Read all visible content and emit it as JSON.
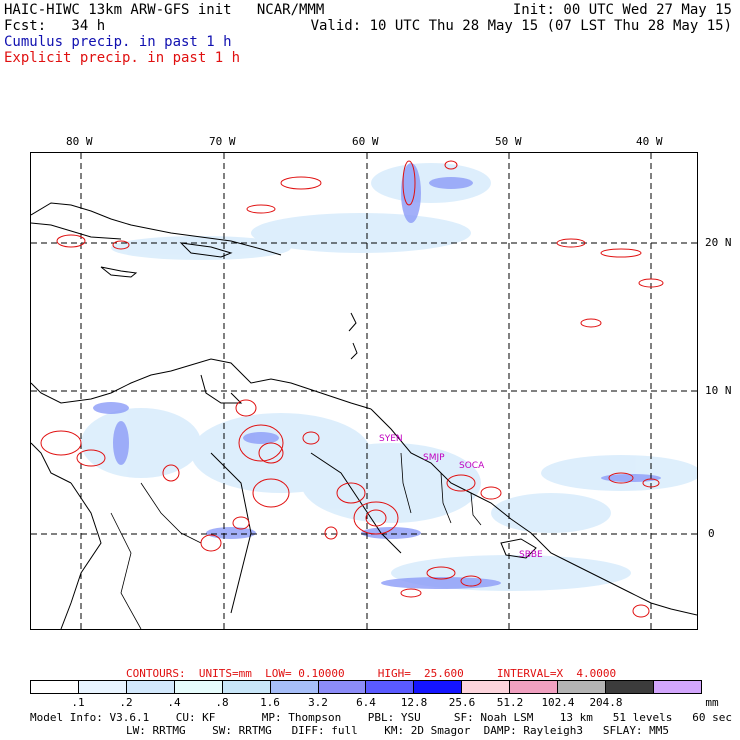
{
  "header": {
    "title": "HAIC-HIWC 13km ARW-GFS init   NCAR/MMM",
    "init": "Init: 00 UTC Wed 27 May 15",
    "fcst": "Fcst:   34 h",
    "valid": "Valid: 10 UTC Thu 28 May 15 (07 LST Thu 28 May 15)",
    "legend_cumulus": "Cumulus precip. in past 1 h",
    "legend_explicit": "Explicit precip. in past 1 h"
  },
  "map": {
    "lon_labels": [
      "80 W",
      "70 W",
      "60 W",
      "50 W",
      "40 W"
    ],
    "lat_labels": [
      "20 N",
      "10 N",
      "0"
    ],
    "station_labels": [
      "SYEN",
      "SMJP",
      "SOCA",
      "SBBE"
    ]
  },
  "contours": {
    "prefix": "CONTOURS:",
    "units": "UNITS=mm",
    "low": "LOW= 0.10000",
    "high": "HIGH=  25.600",
    "interval": "INTERVAL=X  4.0000"
  },
  "colorbar": {
    "colors": [
      "#ffffff",
      "#e8f4ff",
      "#d2e8fc",
      "#e6fcfc",
      "#c8e6f8",
      "#a6bef8",
      "#8c8cf8",
      "#5a5aff",
      "#1414ff",
      "#fcd4dc",
      "#f0a0c0",
      "#b4b4b4",
      "#3c3c3c",
      "#d2a6fc"
    ],
    "labels": [
      ".1",
      ".2",
      ".4",
      ".8",
      "1.6",
      "3.2",
      "6.4",
      "12.8",
      "25.6",
      "51.2",
      "102.4",
      "204.8"
    ],
    "unit": "mm"
  },
  "model_info": {
    "line1": "Model Info: V3.6.1    CU: KF       MP: Thompson    PBL: YSU     SF: Noah LSM    13 km   51 levels   60 sec",
    "line2": "LW: RRTMG    SW: RRTMG   DIFF: full    KM: 2D Smagor  DAMP: Rayleigh3   SFLAY: MM5"
  }
}
